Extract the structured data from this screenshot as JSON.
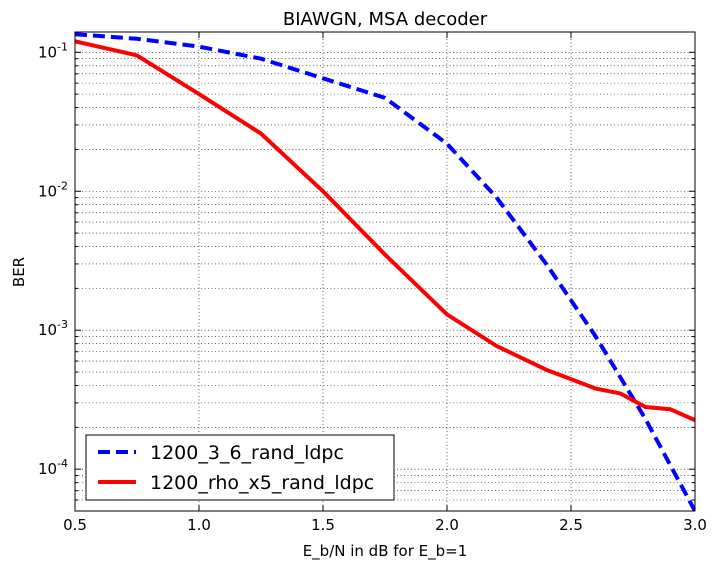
{
  "chart_data": {
    "type": "line",
    "title": "BIAWGN, MSA decoder",
    "xlabel": "E_b/N in dB for E_b=1",
    "ylabel": "BER",
    "xlim": [
      0.5,
      3.0
    ],
    "ylim": [
      5e-05,
      0.14
    ],
    "y_scale": "log",
    "grid": true,
    "legend_position": "bottom-left",
    "x_ticks": [
      {
        "value": 0.5,
        "label": "0.5"
      },
      {
        "value": 1.0,
        "label": "1.0"
      },
      {
        "value": 1.5,
        "label": "1.5"
      },
      {
        "value": 2.0,
        "label": "2.0"
      },
      {
        "value": 2.5,
        "label": "2.5"
      },
      {
        "value": 3.0,
        "label": "3.0"
      }
    ],
    "y_ticks": [
      {
        "value": 0.1,
        "base": "10",
        "exp": "-1"
      },
      {
        "value": 0.01,
        "base": "10",
        "exp": "-2"
      },
      {
        "value": 0.001,
        "base": "10",
        "exp": "-3"
      },
      {
        "value": 0.0001,
        "base": "10",
        "exp": "-4"
      }
    ],
    "series": [
      {
        "name": "1200_3_6_rand_ldpc",
        "color": "#0000ff",
        "style": "dashed",
        "x": [
          0.5,
          0.75,
          1.0,
          1.25,
          1.5,
          1.75,
          2.0,
          2.2,
          2.4,
          2.6,
          2.8,
          3.0
        ],
        "y": [
          0.135,
          0.125,
          0.11,
          0.09,
          0.065,
          0.047,
          0.022,
          0.009,
          0.003,
          0.0009,
          0.00023,
          5e-05
        ]
      },
      {
        "name": "1200_rho_x5_rand_ldpc",
        "color": "#ff0000",
        "style": "solid",
        "x": [
          0.5,
          0.75,
          1.0,
          1.25,
          1.5,
          1.75,
          2.0,
          2.2,
          2.4,
          2.6,
          2.7,
          2.8,
          2.9,
          3.0
        ],
        "y": [
          0.12,
          0.095,
          0.05,
          0.026,
          0.01,
          0.0035,
          0.0013,
          0.00077,
          0.00052,
          0.00038,
          0.00035,
          0.00028,
          0.00027,
          0.000225
        ]
      }
    ]
  }
}
